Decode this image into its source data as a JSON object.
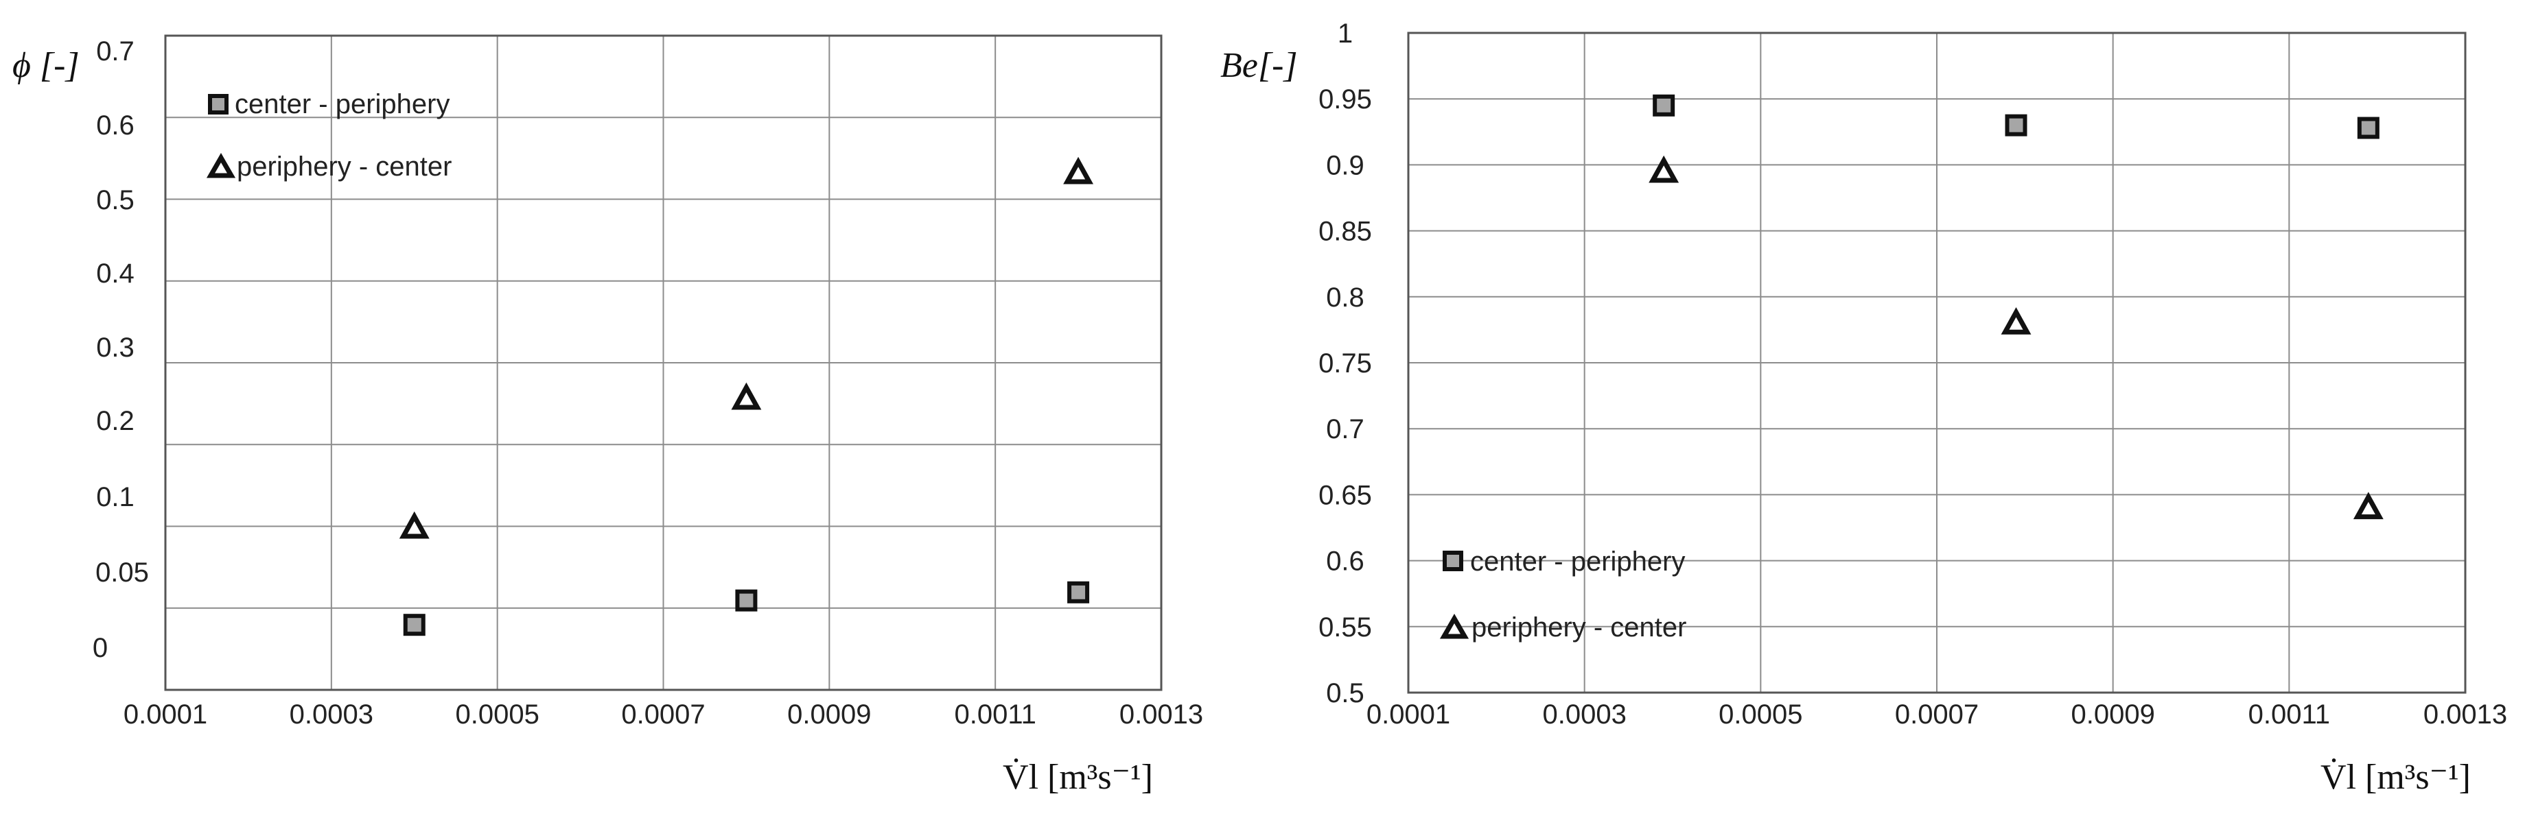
{
  "chart_data": [
    {
      "type": "scatter",
      "title": "",
      "xlabel": "V̇l [m³s⁻¹]",
      "ylabel": "ϕ [-]",
      "xlim": [
        0.0001,
        0.0013
      ],
      "x_ticks": [
        "0.0001",
        "0.0003",
        "0.0005",
        "0.0007",
        "0.0009",
        "0.0011",
        "0.0013"
      ],
      "y_ticks": [
        "0",
        "0.05",
        "0.1",
        "0.2",
        "0.3",
        "0.4",
        "0.5",
        "0.6",
        "0.7"
      ],
      "grid": true,
      "legend_position": "top-left",
      "series": [
        {
          "name": "center - periphery",
          "marker": "square",
          "x": [
            0.0004,
            0.0008,
            0.0012
          ],
          "y": [
            0.04,
            0.055,
            0.06
          ]
        },
        {
          "name": "periphery - center",
          "marker": "triangle",
          "x": [
            0.0004,
            0.0008,
            0.0012
          ],
          "y": [
            0.1,
            0.26,
            0.54
          ]
        }
      ]
    },
    {
      "type": "scatter",
      "title": "",
      "xlabel": "V̇l [m³s⁻¹]",
      "ylabel": "Be[-]",
      "xlim": [
        0.0001,
        0.0013
      ],
      "ylim": [
        0.5,
        1
      ],
      "x_ticks": [
        "0.0001",
        "0.0003",
        "0.0005",
        "0.0007",
        "0.0009",
        "0.0011",
        "0.0013"
      ],
      "y_ticks": [
        "0.5",
        "0.55",
        "0.6",
        "0.65",
        "0.7",
        "0.75",
        "0.8",
        "0.85",
        "0.9",
        "0.95",
        "1"
      ],
      "grid": true,
      "legend_position": "bottom-left",
      "series": [
        {
          "name": "center - periphery",
          "marker": "square",
          "x": [
            0.00039,
            0.00079,
            0.00119
          ],
          "y": [
            0.945,
            0.93,
            0.928
          ]
        },
        {
          "name": "periphery - center",
          "marker": "triangle",
          "x": [
            0.00039,
            0.00079,
            0.00119
          ],
          "y": [
            0.895,
            0.78,
            0.64
          ]
        }
      ]
    }
  ]
}
